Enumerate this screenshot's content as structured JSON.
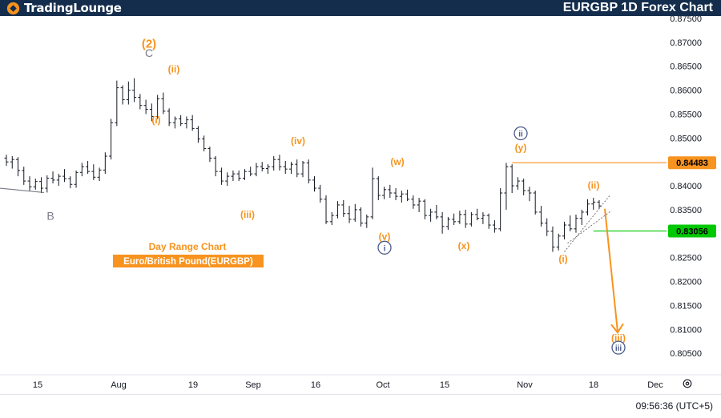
{
  "header": {
    "logo_part1": "TradingLounge",
    "title": "EURGBP 1D Forex Chart"
  },
  "footer": {
    "time": "09:56:36 (UTC+5)"
  },
  "colors": {
    "header_bg": "#142d4c",
    "orange": "#f7931e",
    "wave_orange": "#f79232",
    "navy": "#4a5b8c",
    "gray": "#787b86",
    "green": "#00c800",
    "candle": "#131722"
  },
  "chart_data": {
    "type": "candlestick",
    "title": "EURGBP 1D Forex Chart",
    "ylim": [
      0.8005,
      0.8755
    ],
    "y_ticks": [
      0.805,
      0.81,
      0.815,
      0.82,
      0.825,
      0.83,
      0.835,
      0.84,
      0.845,
      0.85,
      0.855,
      0.86,
      0.865,
      0.87,
      0.875
    ],
    "x_tick_labels": [
      "15",
      "Aug",
      "19",
      "Sep",
      "16",
      "Oct",
      "15",
      "Nov",
      "18",
      "Dec"
    ],
    "price_labels": [
      {
        "value": 0.84483,
        "text": "0.84483",
        "color": "#f7931e"
      },
      {
        "value": 0.83056,
        "text": "0.83056",
        "color": "#00c800"
      }
    ],
    "info_text": {
      "line1": "Day Range Chart",
      "line2": "Euro/British Pound(EURGBP)"
    },
    "wave_labels": [
      {
        "text": "(2)",
        "color": "#f7931e",
        "price": 0.8689
      },
      {
        "text": "C",
        "color": "#787b86",
        "price": 0.867
      },
      {
        "text": "B",
        "color": "#787b86",
        "price": 0.8329
      },
      {
        "text": "(i)",
        "color": "#f7931e",
        "price": 0.8531
      },
      {
        "text": "(ii)",
        "color": "#f7931e",
        "price": 0.8637
      },
      {
        "text": "(iii)",
        "color": "#f7931e",
        "price": 0.8333
      },
      {
        "text": "(iv)",
        "color": "#f7931e",
        "price": 0.8487
      },
      {
        "text": "(w)",
        "color": "#f7931e",
        "price": 0.8444
      },
      {
        "text": "(v)",
        "color": "#f7931e",
        "price": 0.8287
      },
      {
        "text": "i",
        "color": "#4a5b8c",
        "price": 0.8264,
        "circled": true
      },
      {
        "text": "(x)",
        "color": "#f7931e",
        "price": 0.8268
      },
      {
        "text": "ii",
        "color": "#4a5b8c",
        "price": 0.8503,
        "circled": true
      },
      {
        "text": "(y)",
        "color": "#f7931e",
        "price": 0.8473
      },
      {
        "text": "(ii)",
        "color": "#f7931e",
        "price": 0.8394
      },
      {
        "text": "(i)",
        "color": "#f7931e",
        "price": 0.824
      },
      {
        "text": "(iii)",
        "color": "#f7931e",
        "price": 0.8075
      },
      {
        "text": "iii",
        "color": "#4a5b8c",
        "price": 0.8055,
        "circled": true
      }
    ],
    "candles": [
      {
        "o": 0.8458,
        "h": 0.8465,
        "l": 0.8442,
        "c": 0.845
      },
      {
        "o": 0.845,
        "h": 0.8462,
        "l": 0.8436,
        "c": 0.8455
      },
      {
        "o": 0.8455,
        "h": 0.846,
        "l": 0.842,
        "c": 0.8432
      },
      {
        "o": 0.8432,
        "h": 0.844,
        "l": 0.8402,
        "c": 0.841
      },
      {
        "o": 0.841,
        "h": 0.842,
        "l": 0.839,
        "c": 0.8398
      },
      {
        "o": 0.8398,
        "h": 0.8415,
        "l": 0.8392,
        "c": 0.8409
      },
      {
        "o": 0.8409,
        "h": 0.8418,
        "l": 0.8385,
        "c": 0.8395
      },
      {
        "o": 0.8395,
        "h": 0.8422,
        "l": 0.8386,
        "c": 0.8416
      },
      {
        "o": 0.8416,
        "h": 0.843,
        "l": 0.8405,
        "c": 0.8412
      },
      {
        "o": 0.8412,
        "h": 0.8425,
        "l": 0.84,
        "c": 0.842
      },
      {
        "o": 0.842,
        "h": 0.8435,
        "l": 0.8408,
        "c": 0.8415
      },
      {
        "o": 0.8415,
        "h": 0.842,
        "l": 0.8395,
        "c": 0.8403
      },
      {
        "o": 0.8403,
        "h": 0.8432,
        "l": 0.8396,
        "c": 0.8428
      },
      {
        "o": 0.8428,
        "h": 0.8448,
        "l": 0.842,
        "c": 0.844
      },
      {
        "o": 0.844,
        "h": 0.8452,
        "l": 0.8425,
        "c": 0.843
      },
      {
        "o": 0.843,
        "h": 0.8445,
        "l": 0.8412,
        "c": 0.8418
      },
      {
        "o": 0.8418,
        "h": 0.8438,
        "l": 0.841,
        "c": 0.8433
      },
      {
        "o": 0.8433,
        "h": 0.847,
        "l": 0.8425,
        "c": 0.8462
      },
      {
        "o": 0.8462,
        "h": 0.854,
        "l": 0.8455,
        "c": 0.8532
      },
      {
        "o": 0.8532,
        "h": 0.862,
        "l": 0.8525,
        "c": 0.8605
      },
      {
        "o": 0.8605,
        "h": 0.861,
        "l": 0.857,
        "c": 0.858
      },
      {
        "o": 0.858,
        "h": 0.8618,
        "l": 0.857,
        "c": 0.86
      },
      {
        "o": 0.86,
        "h": 0.8625,
        "l": 0.8575,
        "c": 0.8585
      },
      {
        "o": 0.8585,
        "h": 0.8592,
        "l": 0.856,
        "c": 0.8568
      },
      {
        "o": 0.8568,
        "h": 0.858,
        "l": 0.855,
        "c": 0.856
      },
      {
        "o": 0.856,
        "h": 0.8572,
        "l": 0.8535,
        "c": 0.8545
      },
      {
        "o": 0.8545,
        "h": 0.859,
        "l": 0.854,
        "c": 0.8582
      },
      {
        "o": 0.8582,
        "h": 0.8595,
        "l": 0.855,
        "c": 0.8556
      },
      {
        "o": 0.8556,
        "h": 0.8562,
        "l": 0.8525,
        "c": 0.8532
      },
      {
        "o": 0.8532,
        "h": 0.8545,
        "l": 0.852,
        "c": 0.854
      },
      {
        "o": 0.854,
        "h": 0.8548,
        "l": 0.8525,
        "c": 0.853
      },
      {
        "o": 0.853,
        "h": 0.8545,
        "l": 0.852,
        "c": 0.8538
      },
      {
        "o": 0.8538,
        "h": 0.8548,
        "l": 0.8515,
        "c": 0.852
      },
      {
        "o": 0.852,
        "h": 0.8525,
        "l": 0.849,
        "c": 0.8498
      },
      {
        "o": 0.8498,
        "h": 0.8505,
        "l": 0.8472,
        "c": 0.8478
      },
      {
        "o": 0.8478,
        "h": 0.8482,
        "l": 0.845,
        "c": 0.8458
      },
      {
        "o": 0.8458,
        "h": 0.8462,
        "l": 0.842,
        "c": 0.843
      },
      {
        "o": 0.843,
        "h": 0.8438,
        "l": 0.8402,
        "c": 0.841
      },
      {
        "o": 0.841,
        "h": 0.8428,
        "l": 0.84,
        "c": 0.842
      },
      {
        "o": 0.842,
        "h": 0.8432,
        "l": 0.841,
        "c": 0.8425
      },
      {
        "o": 0.8425,
        "h": 0.8432,
        "l": 0.841,
        "c": 0.8416
      },
      {
        "o": 0.8416,
        "h": 0.8435,
        "l": 0.8412,
        "c": 0.843
      },
      {
        "o": 0.843,
        "h": 0.844,
        "l": 0.842,
        "c": 0.8425
      },
      {
        "o": 0.8425,
        "h": 0.8448,
        "l": 0.842,
        "c": 0.844
      },
      {
        "o": 0.844,
        "h": 0.845,
        "l": 0.843,
        "c": 0.8436
      },
      {
        "o": 0.8436,
        "h": 0.8445,
        "l": 0.8425,
        "c": 0.844
      },
      {
        "o": 0.844,
        "h": 0.8462,
        "l": 0.8432,
        "c": 0.8455
      },
      {
        "o": 0.8455,
        "h": 0.8465,
        "l": 0.8432,
        "c": 0.844
      },
      {
        "o": 0.844,
        "h": 0.8452,
        "l": 0.8425,
        "c": 0.8435
      },
      {
        "o": 0.8435,
        "h": 0.845,
        "l": 0.8425,
        "c": 0.8445
      },
      {
        "o": 0.8445,
        "h": 0.8455,
        "l": 0.8418,
        "c": 0.8425
      },
      {
        "o": 0.8425,
        "h": 0.8452,
        "l": 0.8418,
        "c": 0.8448
      },
      {
        "o": 0.8448,
        "h": 0.8455,
        "l": 0.8405,
        "c": 0.8412
      },
      {
        "o": 0.8412,
        "h": 0.842,
        "l": 0.8388,
        "c": 0.8395
      },
      {
        "o": 0.8395,
        "h": 0.8402,
        "l": 0.8365,
        "c": 0.8372
      },
      {
        "o": 0.8372,
        "h": 0.838,
        "l": 0.832,
        "c": 0.8325
      },
      {
        "o": 0.8325,
        "h": 0.8345,
        "l": 0.8318,
        "c": 0.8338
      },
      {
        "o": 0.8338,
        "h": 0.8368,
        "l": 0.8332,
        "c": 0.836
      },
      {
        "o": 0.836,
        "h": 0.837,
        "l": 0.8335,
        "c": 0.8342
      },
      {
        "o": 0.8342,
        "h": 0.8358,
        "l": 0.8322,
        "c": 0.833
      },
      {
        "o": 0.833,
        "h": 0.8362,
        "l": 0.8325,
        "c": 0.835
      },
      {
        "o": 0.835,
        "h": 0.8355,
        "l": 0.8315,
        "c": 0.8322
      },
      {
        "o": 0.8322,
        "h": 0.834,
        "l": 0.8312,
        "c": 0.8335
      },
      {
        "o": 0.8335,
        "h": 0.8438,
        "l": 0.833,
        "c": 0.8415
      },
      {
        "o": 0.8415,
        "h": 0.842,
        "l": 0.837,
        "c": 0.838
      },
      {
        "o": 0.838,
        "h": 0.8398,
        "l": 0.8372,
        "c": 0.8392
      },
      {
        "o": 0.8392,
        "h": 0.8402,
        "l": 0.8375,
        "c": 0.8385
      },
      {
        "o": 0.8385,
        "h": 0.8395,
        "l": 0.837,
        "c": 0.8378
      },
      {
        "o": 0.8378,
        "h": 0.839,
        "l": 0.8365,
        "c": 0.8383
      },
      {
        "o": 0.8383,
        "h": 0.8392,
        "l": 0.8368,
        "c": 0.8372
      },
      {
        "o": 0.8372,
        "h": 0.838,
        "l": 0.8352,
        "c": 0.836
      },
      {
        "o": 0.836,
        "h": 0.8375,
        "l": 0.8345,
        "c": 0.8368
      },
      {
        "o": 0.8368,
        "h": 0.8372,
        "l": 0.833,
        "c": 0.8338
      },
      {
        "o": 0.8338,
        "h": 0.8352,
        "l": 0.8325,
        "c": 0.8345
      },
      {
        "o": 0.8345,
        "h": 0.836,
        "l": 0.833,
        "c": 0.8335
      },
      {
        "o": 0.8335,
        "h": 0.8345,
        "l": 0.83,
        "c": 0.8315
      },
      {
        "o": 0.8315,
        "h": 0.8335,
        "l": 0.8308,
        "c": 0.833
      },
      {
        "o": 0.833,
        "h": 0.8342,
        "l": 0.8318,
        "c": 0.8325
      },
      {
        "o": 0.8325,
        "h": 0.8348,
        "l": 0.832,
        "c": 0.834
      },
      {
        "o": 0.834,
        "h": 0.835,
        "l": 0.8312,
        "c": 0.832
      },
      {
        "o": 0.832,
        "h": 0.8345,
        "l": 0.8315,
        "c": 0.834
      },
      {
        "o": 0.834,
        "h": 0.8352,
        "l": 0.8328,
        "c": 0.8332
      },
      {
        "o": 0.8332,
        "h": 0.8345,
        "l": 0.832,
        "c": 0.8338
      },
      {
        "o": 0.8338,
        "h": 0.8342,
        "l": 0.831,
        "c": 0.8318
      },
      {
        "o": 0.8318,
        "h": 0.8328,
        "l": 0.8302,
        "c": 0.831
      },
      {
        "o": 0.831,
        "h": 0.8395,
        "l": 0.8305,
        "c": 0.8385
      },
      {
        "o": 0.8385,
        "h": 0.8448,
        "l": 0.835,
        "c": 0.844
      },
      {
        "o": 0.844,
        "h": 0.8445,
        "l": 0.8385,
        "c": 0.84
      },
      {
        "o": 0.84,
        "h": 0.8418,
        "l": 0.8392,
        "c": 0.841
      },
      {
        "o": 0.841,
        "h": 0.8415,
        "l": 0.838,
        "c": 0.839
      },
      {
        "o": 0.839,
        "h": 0.8398,
        "l": 0.8368,
        "c": 0.8385
      },
      {
        "o": 0.8385,
        "h": 0.839,
        "l": 0.834,
        "c": 0.8345
      },
      {
        "o": 0.8345,
        "h": 0.8358,
        "l": 0.8315,
        "c": 0.8322
      },
      {
        "o": 0.8322,
        "h": 0.8332,
        "l": 0.8295,
        "c": 0.8305
      },
      {
        "o": 0.8305,
        "h": 0.8315,
        "l": 0.8262,
        "c": 0.8272
      },
      {
        "o": 0.8272,
        "h": 0.83,
        "l": 0.8265,
        "c": 0.8295
      },
      {
        "o": 0.8295,
        "h": 0.8325,
        "l": 0.8288,
        "c": 0.8318
      },
      {
        "o": 0.8318,
        "h": 0.8338,
        "l": 0.8305,
        "c": 0.831
      },
      {
        "o": 0.831,
        "h": 0.834,
        "l": 0.8302,
        "c": 0.8332
      },
      {
        "o": 0.8332,
        "h": 0.835,
        "l": 0.8318,
        "c": 0.8345
      },
      {
        "o": 0.8345,
        "h": 0.8372,
        "l": 0.8338,
        "c": 0.8362
      },
      {
        "o": 0.8362,
        "h": 0.8375,
        "l": 0.835,
        "c": 0.8366
      },
      {
        "o": 0.8366,
        "h": 0.837,
        "l": 0.8352,
        "c": 0.8358
      }
    ]
  }
}
